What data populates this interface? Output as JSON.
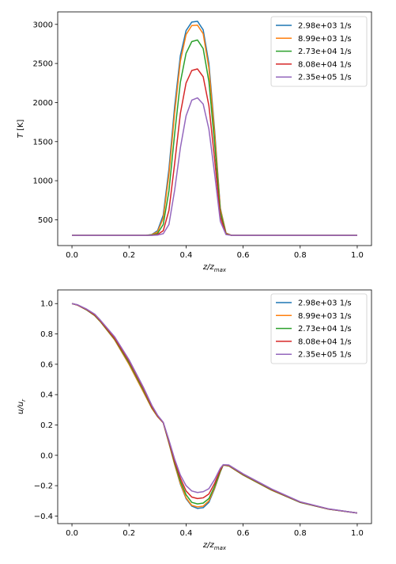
{
  "chart_data": [
    {
      "type": "line",
      "xlabel": "z/z_max",
      "ylabel": "T [K]",
      "xlim": [
        -0.05,
        1.05
      ],
      "ylim": [
        170,
        3160
      ],
      "xticks": [
        "0.0",
        "0.2",
        "0.4",
        "0.6",
        "0.8",
        "1.0"
      ],
      "yticks": [
        "500",
        "1000",
        "1500",
        "2000",
        "2500",
        "3000"
      ],
      "grid": false,
      "legend": "top-right",
      "series": [
        {
          "name": "2.98e+03 1/s",
          "color": "#1f77b4",
          "x": [
            0,
            0.2,
            0.26,
            0.28,
            0.3,
            0.32,
            0.34,
            0.36,
            0.38,
            0.4,
            0.42,
            0.44,
            0.46,
            0.48,
            0.5,
            0.52,
            0.54,
            0.56,
            0.6,
            0.8,
            1.0
          ],
          "y": [
            300,
            300,
            300,
            312,
            360,
            560,
            1150,
            1950,
            2600,
            2920,
            3030,
            3040,
            2930,
            2500,
            1650,
            650,
            330,
            300,
            300,
            300,
            300
          ]
        },
        {
          "name": "8.99e+03 1/s",
          "color": "#ff7f0e",
          "x": [
            0,
            0.2,
            0.26,
            0.28,
            0.3,
            0.32,
            0.34,
            0.36,
            0.38,
            0.4,
            0.42,
            0.44,
            0.46,
            0.48,
            0.5,
            0.52,
            0.54,
            0.56,
            0.6,
            0.8,
            1.0
          ],
          "y": [
            300,
            300,
            300,
            310,
            345,
            520,
            1080,
            1870,
            2530,
            2870,
            2985,
            2990,
            2880,
            2440,
            1600,
            640,
            328,
            300,
            300,
            300,
            300
          ]
        },
        {
          "name": "2.73e+04 1/s",
          "color": "#2ca02c",
          "x": [
            0,
            0.2,
            0.26,
            0.28,
            0.3,
            0.32,
            0.34,
            0.36,
            0.38,
            0.4,
            0.42,
            0.44,
            0.46,
            0.48,
            0.5,
            0.52,
            0.54,
            0.56,
            0.6,
            0.8,
            1.0
          ],
          "y": [
            300,
            300,
            300,
            305,
            325,
            440,
            870,
            1600,
            2260,
            2630,
            2780,
            2800,
            2690,
            2270,
            1480,
            600,
            320,
            300,
            300,
            300,
            300
          ]
        },
        {
          "name": "8.08e+04 1/s",
          "color": "#d62728",
          "x": [
            0,
            0.2,
            0.26,
            0.28,
            0.3,
            0.32,
            0.34,
            0.36,
            0.38,
            0.4,
            0.42,
            0.44,
            0.46,
            0.48,
            0.5,
            0.52,
            0.54,
            0.56,
            0.6,
            0.8,
            1.0
          ],
          "y": [
            300,
            300,
            300,
            302,
            312,
            360,
            620,
            1220,
            1860,
            2250,
            2410,
            2430,
            2330,
            1960,
            1280,
            540,
            315,
            300,
            300,
            300,
            300
          ]
        },
        {
          "name": "2.35e+05 1/s",
          "color": "#9467bd",
          "x": [
            0,
            0.2,
            0.26,
            0.28,
            0.3,
            0.32,
            0.34,
            0.36,
            0.38,
            0.4,
            0.42,
            0.44,
            0.46,
            0.48,
            0.5,
            0.52,
            0.54,
            0.56,
            0.6,
            0.8,
            1.0
          ],
          "y": [
            300,
            300,
            300,
            300,
            304,
            322,
            440,
            880,
            1420,
            1830,
            2030,
            2060,
            1980,
            1660,
            1090,
            480,
            310,
            300,
            300,
            300,
            300
          ]
        }
      ]
    },
    {
      "type": "line",
      "xlabel": "z/z_max",
      "ylabel": "u/u_r",
      "xlim": [
        -0.05,
        1.05
      ],
      "ylim": [
        -0.45,
        1.09
      ],
      "xticks": [
        "0.0",
        "0.2",
        "0.4",
        "0.6",
        "0.8",
        "1.0"
      ],
      "yticks": [
        "−0.4",
        "−0.2",
        "0.0",
        "0.2",
        "0.4",
        "0.6",
        "0.8",
        "1.0"
      ],
      "grid": false,
      "legend": "top-right",
      "series": [
        {
          "name": "2.98e+03 1/s",
          "color": "#1f77b4",
          "x": [
            0,
            0.02,
            0.05,
            0.08,
            0.1,
            0.15,
            0.2,
            0.25,
            0.28,
            0.3,
            0.32,
            0.34,
            0.36,
            0.38,
            0.4,
            0.42,
            0.44,
            0.46,
            0.48,
            0.5,
            0.52,
            0.53,
            0.55,
            0.6,
            0.7,
            0.8,
            0.9,
            1.0
          ],
          "y": [
            1.0,
            0.99,
            0.96,
            0.92,
            0.88,
            0.76,
            0.6,
            0.42,
            0.31,
            0.255,
            0.215,
            0.08,
            -0.06,
            -0.19,
            -0.285,
            -0.335,
            -0.35,
            -0.345,
            -0.31,
            -0.22,
            -0.11,
            -0.065,
            -0.07,
            -0.13,
            -0.23,
            -0.31,
            -0.355,
            -0.38
          ]
        },
        {
          "name": "8.99e+03 1/s",
          "color": "#ff7f0e",
          "x": [
            0,
            0.02,
            0.05,
            0.08,
            0.1,
            0.15,
            0.2,
            0.25,
            0.28,
            0.3,
            0.32,
            0.34,
            0.36,
            0.38,
            0.4,
            0.42,
            0.44,
            0.46,
            0.48,
            0.5,
            0.52,
            0.53,
            0.55,
            0.6,
            0.7,
            0.8,
            0.9,
            1.0
          ],
          "y": [
            1.0,
            0.99,
            0.96,
            0.92,
            0.88,
            0.76,
            0.6,
            0.42,
            0.31,
            0.255,
            0.215,
            0.08,
            -0.06,
            -0.185,
            -0.28,
            -0.33,
            -0.34,
            -0.335,
            -0.3,
            -0.215,
            -0.108,
            -0.065,
            -0.07,
            -0.13,
            -0.23,
            -0.31,
            -0.355,
            -0.38
          ]
        },
        {
          "name": "2.73e+04 1/s",
          "color": "#2ca02c",
          "x": [
            0,
            0.02,
            0.05,
            0.08,
            0.1,
            0.15,
            0.2,
            0.25,
            0.28,
            0.3,
            0.32,
            0.34,
            0.36,
            0.38,
            0.4,
            0.42,
            0.44,
            0.46,
            0.48,
            0.5,
            0.52,
            0.53,
            0.55,
            0.6,
            0.7,
            0.8,
            0.9,
            1.0
          ],
          "y": [
            1.0,
            0.99,
            0.96,
            0.922,
            0.882,
            0.765,
            0.61,
            0.43,
            0.315,
            0.258,
            0.215,
            0.085,
            -0.05,
            -0.17,
            -0.26,
            -0.31,
            -0.32,
            -0.315,
            -0.285,
            -0.205,
            -0.103,
            -0.064,
            -0.068,
            -0.128,
            -0.228,
            -0.31,
            -0.355,
            -0.38
          ]
        },
        {
          "name": "8.08e+04 1/s",
          "color": "#d62728",
          "x": [
            0,
            0.02,
            0.05,
            0.08,
            0.1,
            0.15,
            0.2,
            0.25,
            0.28,
            0.3,
            0.32,
            0.34,
            0.36,
            0.38,
            0.4,
            0.42,
            0.44,
            0.46,
            0.48,
            0.5,
            0.52,
            0.53,
            0.55,
            0.6,
            0.7,
            0.8,
            0.9,
            1.0
          ],
          "y": [
            1.0,
            0.99,
            0.962,
            0.925,
            0.885,
            0.77,
            0.62,
            0.44,
            0.32,
            0.26,
            0.215,
            0.09,
            -0.04,
            -0.15,
            -0.235,
            -0.275,
            -0.285,
            -0.28,
            -0.255,
            -0.185,
            -0.095,
            -0.063,
            -0.066,
            -0.125,
            -0.225,
            -0.308,
            -0.354,
            -0.38
          ]
        },
        {
          "name": "2.35e+05 1/s",
          "color": "#9467bd",
          "x": [
            0,
            0.02,
            0.05,
            0.08,
            0.1,
            0.15,
            0.2,
            0.25,
            0.28,
            0.3,
            0.32,
            0.34,
            0.36,
            0.38,
            0.4,
            0.42,
            0.44,
            0.46,
            0.48,
            0.5,
            0.52,
            0.53,
            0.55,
            0.6,
            0.7,
            0.8,
            0.9,
            1.0
          ],
          "y": [
            1.0,
            0.992,
            0.965,
            0.93,
            0.89,
            0.78,
            0.63,
            0.45,
            0.33,
            0.265,
            0.218,
            0.1,
            -0.025,
            -0.13,
            -0.2,
            -0.235,
            -0.245,
            -0.24,
            -0.22,
            -0.16,
            -0.085,
            -0.062,
            -0.064,
            -0.122,
            -0.222,
            -0.306,
            -0.353,
            -0.38
          ]
        }
      ]
    }
  ]
}
